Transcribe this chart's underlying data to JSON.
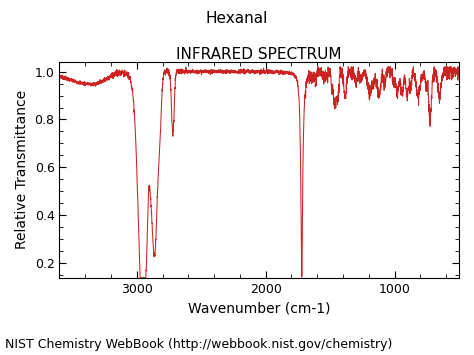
{
  "title_line1": "Hexanal",
  "title_line2": "INFRARED SPECTRUM",
  "xlabel": "Wavenumber (cm-1)",
  "ylabel": "Relative Transmittance",
  "footer": "NIST Chemistry WebBook (http://webbook.nist.gov/chemistry)",
  "xlim": [
    3600,
    500
  ],
  "ylim": [
    0.14,
    1.04
  ],
  "xticks": [
    3000,
    2000,
    1000
  ],
  "yticks": [
    0.2,
    0.4,
    0.6,
    0.8,
    1.0
  ],
  "line_color": "#cc2222",
  "background_color": "#ffffff",
  "title_fontsize": 11,
  "label_fontsize": 10,
  "footer_fontsize": 9
}
